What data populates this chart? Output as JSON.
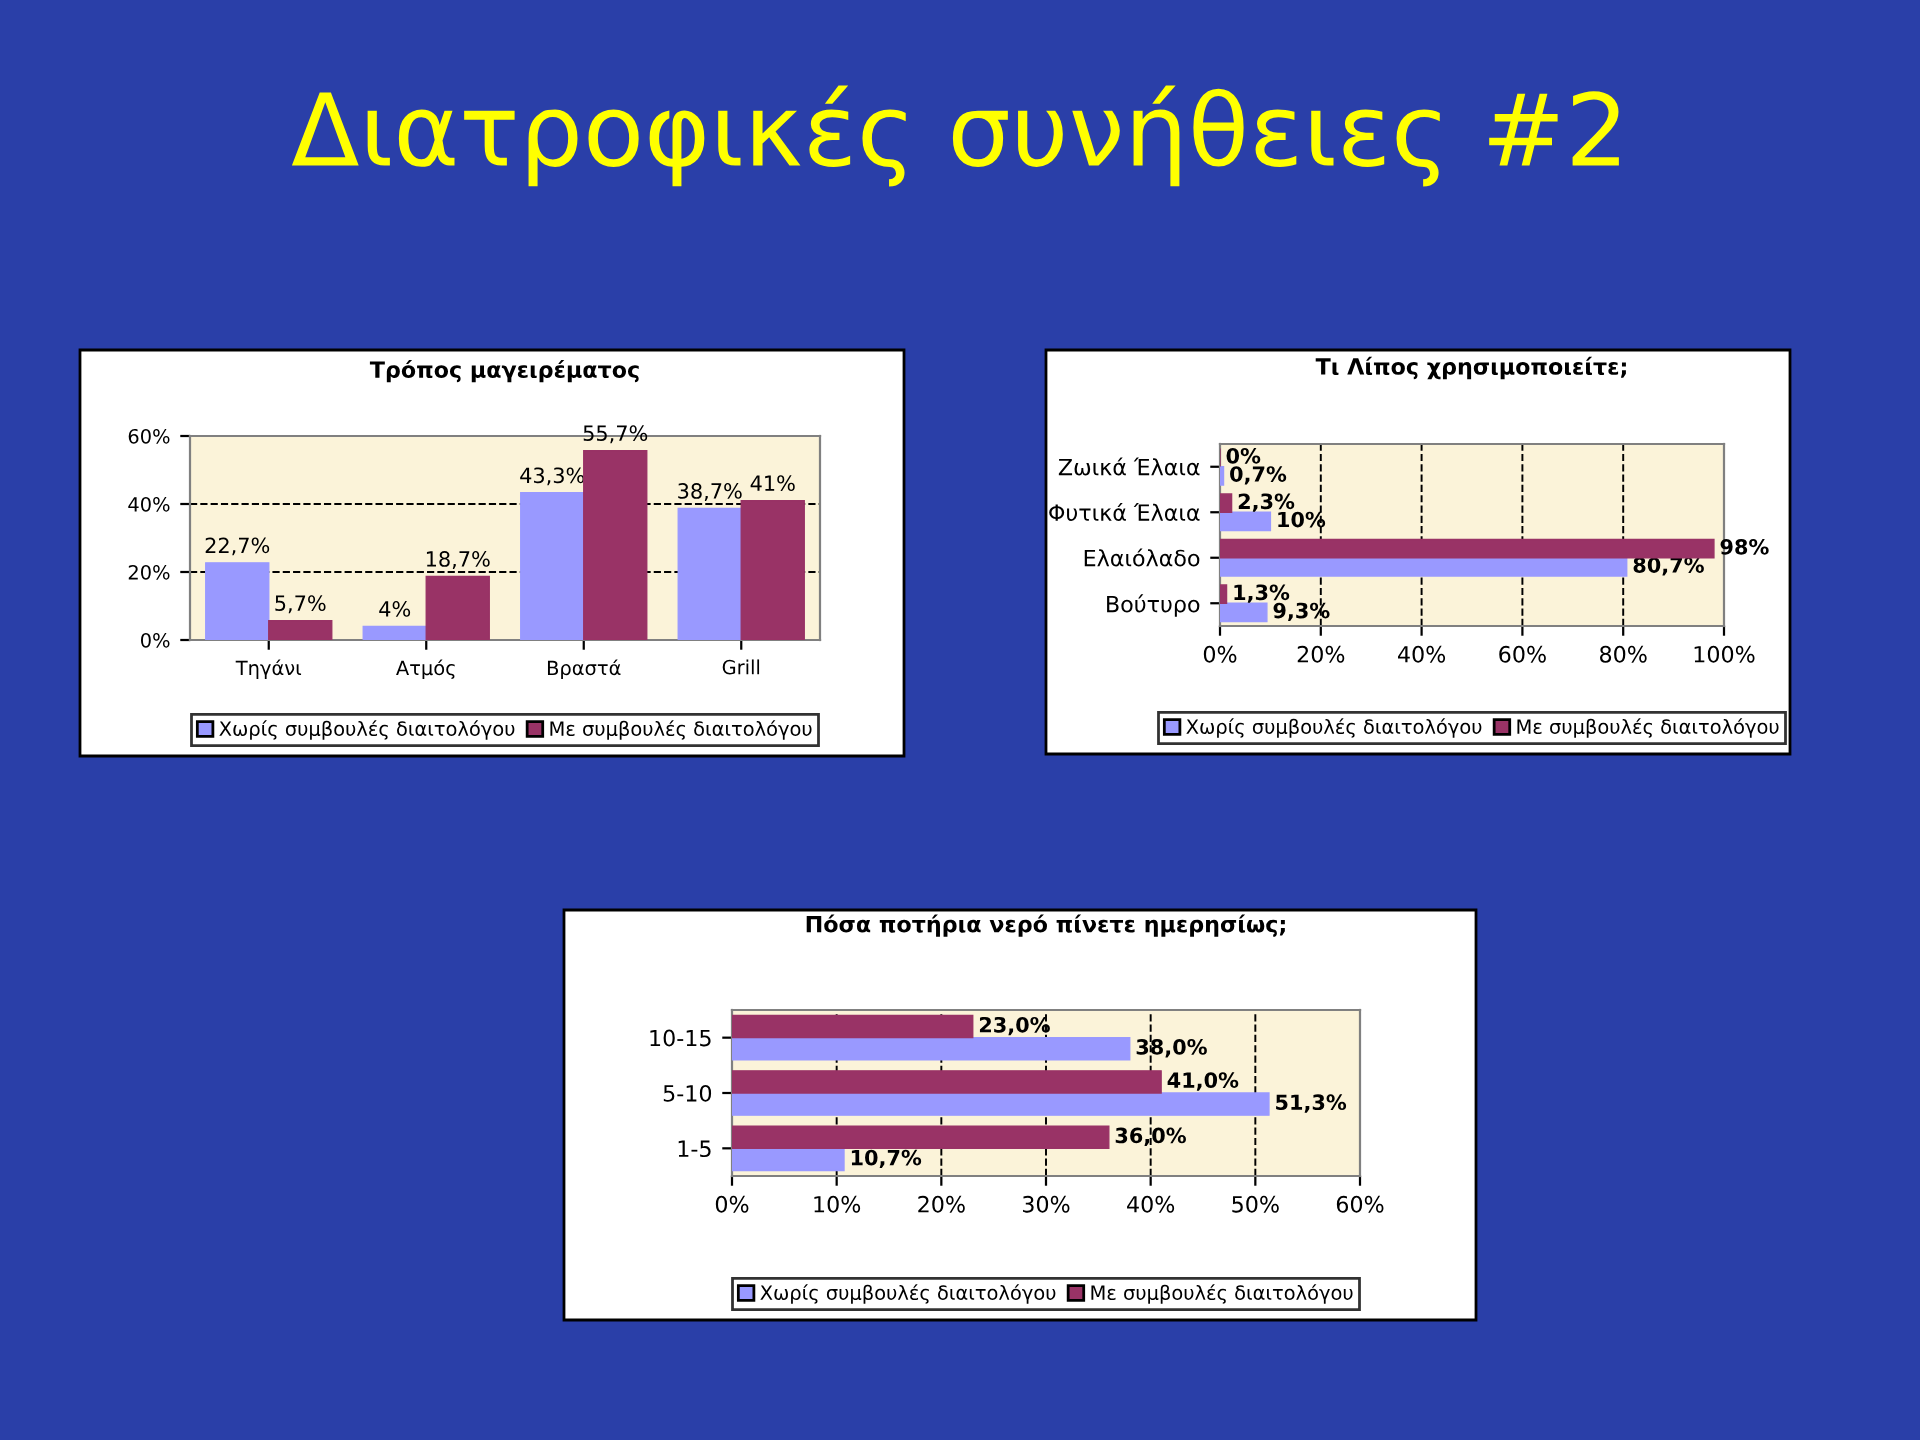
{
  "chart_data": [
    {
      "type": "other",
      "title": "Διατροφικές συνήθειες #2"
    },
    {
      "type": "bar",
      "title": "Τρόπος μαγειρέματος",
      "categories": [
        "Τηγάνι",
        "Ατμός",
        "Βραστά",
        "Grill"
      ],
      "series": [
        {
          "name": "Χωρίς συμβουλές διαιτολόγου",
          "color": "#9999ff",
          "values": [
            22.7,
            4,
            43.3,
            38.7
          ],
          "value_labels": [
            "22,7%",
            "4%",
            "43,3%",
            "38,7%"
          ]
        },
        {
          "name": "Με συμβουλές διαιτολόγου",
          "color": "#993366",
          "values": [
            5.7,
            18.7,
            55.7,
            41
          ],
          "value_labels": [
            "5,7%",
            "18,7%",
            "55,7%",
            "41%"
          ]
        }
      ],
      "ylim": [
        0,
        60
      ],
      "yticks": [
        {
          "value": 0,
          "label": "0%"
        },
        {
          "value": 20,
          "label": "20%"
        },
        {
          "value": 40,
          "label": "40%"
        },
        {
          "value": 60,
          "label": "60%"
        }
      ],
      "grid": "y",
      "legend": "bottom"
    },
    {
      "type": "bar",
      "orientation": "horizontal",
      "title": "Τι Λίπος χρησιμοποιείτε;",
      "categories": [
        "Ζωικά Έλαια",
        "Φυτικά Έλαια",
        "Ελαιόλαδο",
        "Βούτυρο"
      ],
      "series": [
        {
          "name": "Χωρίς συμβουλές διαιτολόγου",
          "color": "#9999ff",
          "values": [
            0.7,
            10,
            80.7,
            9.3
          ],
          "value_labels": [
            "0,7%",
            "10%",
            "80,7%",
            "9,3%"
          ]
        },
        {
          "name": "Με συμβουλές διαιτολόγου",
          "color": "#993366",
          "values": [
            0,
            2.3,
            98,
            1.3
          ],
          "value_labels": [
            "0%",
            "2,3%",
            "98%",
            "1,3%"
          ]
        }
      ],
      "xlim": [
        0,
        100
      ],
      "xticks": [
        {
          "value": 0,
          "label": "0%"
        },
        {
          "value": 20,
          "label": "20%"
        },
        {
          "value": 40,
          "label": "40%"
        },
        {
          "value": 60,
          "label": "60%"
        },
        {
          "value": 80,
          "label": "80%"
        },
        {
          "value": 100,
          "label": "100%"
        }
      ],
      "grid": "x",
      "legend": "bottom"
    },
    {
      "type": "bar",
      "orientation": "horizontal",
      "title": "Πόσα ποτήρια νερό πίνετε ημερησίως;",
      "categories": [
        "10-15",
        "5-10",
        "1-5"
      ],
      "series": [
        {
          "name": "Χωρίς συμβουλές διαιτολόγου",
          "color": "#9999ff",
          "values": [
            38,
            51.3,
            10.7
          ],
          "value_labels": [
            "38,0%",
            "51,3%",
            "10,7%"
          ]
        },
        {
          "name": "Με συμβουλές διαιτολόγου",
          "color": "#993366",
          "values": [
            23,
            41,
            36
          ],
          "value_labels": [
            "23,0%",
            "41,0%",
            "36,0%"
          ]
        }
      ],
      "xlim": [
        0,
        60
      ],
      "xticks": [
        {
          "value": 0,
          "label": "0%"
        },
        {
          "value": 10,
          "label": "10%"
        },
        {
          "value": 20,
          "label": "20%"
        },
        {
          "value": 30,
          "label": "30%"
        },
        {
          "value": 40,
          "label": "40%"
        },
        {
          "value": 50,
          "label": "50%"
        },
        {
          "value": 60,
          "label": "60%"
        }
      ],
      "grid": "x",
      "legend": "bottom"
    }
  ]
}
